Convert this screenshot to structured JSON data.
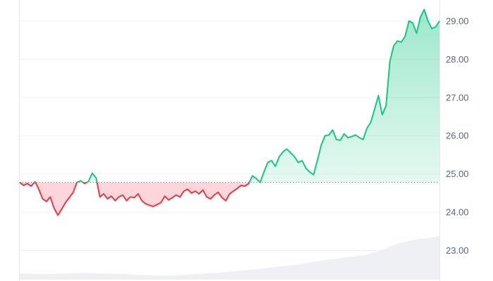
{
  "chart_data": {
    "type": "area",
    "baseline": 24.78,
    "ylim": [
      22.2,
      29.55
    ],
    "y_ticks": [
      {
        "value": 23,
        "label": "23.00"
      },
      {
        "value": 24,
        "label": "24.00"
      },
      {
        "value": 25,
        "label": "25.00"
      },
      {
        "value": 26,
        "label": "26.00"
      },
      {
        "value": 27,
        "label": "27.00"
      },
      {
        "value": 28,
        "label": "28.00"
      },
      {
        "value": 29,
        "label": "29.00"
      }
    ],
    "price": [
      24.78,
      24.7,
      24.75,
      24.68,
      24.8,
      24.6,
      24.35,
      24.28,
      24.4,
      24.1,
      23.92,
      24.08,
      24.25,
      24.38,
      24.52,
      24.78,
      24.82,
      24.75,
      24.8,
      25.02,
      24.9,
      24.4,
      24.48,
      24.35,
      24.42,
      24.3,
      24.4,
      24.45,
      24.3,
      24.4,
      24.38,
      24.48,
      24.3,
      24.22,
      24.18,
      24.15,
      24.2,
      24.25,
      24.42,
      24.32,
      24.38,
      24.45,
      24.4,
      24.55,
      24.6,
      24.5,
      24.55,
      24.48,
      24.58,
      24.4,
      24.35,
      24.45,
      24.52,
      24.38,
      24.3,
      24.48,
      24.55,
      24.62,
      24.7,
      24.68,
      24.75,
      24.95,
      24.88,
      24.78,
      25.05,
      25.3,
      25.35,
      25.2,
      25.45,
      25.58,
      25.65,
      25.55,
      25.45,
      25.3,
      25.35,
      25.15,
      25.05,
      24.98,
      25.35,
      25.75,
      26.0,
      26.02,
      26.15,
      25.9,
      25.88,
      26.05,
      25.95,
      25.98,
      26.02,
      25.95,
      25.9,
      26.2,
      26.35,
      26.7,
      27.05,
      26.55,
      26.78,
      27.95,
      28.35,
      28.48,
      28.45,
      28.6,
      29.0,
      28.95,
      28.68,
      29.1,
      29.3,
      29.0,
      28.8,
      28.85,
      29.0
    ],
    "volume": [
      0.3,
      0.3,
      0.28,
      0.28,
      0.3,
      0.32,
      0.35,
      0.32,
      0.3,
      0.3,
      0.28,
      0.25,
      0.22,
      0.2,
      0.2,
      0.22,
      0.25,
      0.28,
      0.32,
      0.35,
      0.4,
      0.45,
      0.5,
      0.55,
      0.62,
      0.68,
      0.72,
      0.8,
      0.9,
      0.98,
      1.05,
      1.12,
      1.18,
      1.25,
      1.4,
      1.6,
      1.8,
      1.95,
      2.05,
      2.1,
      2.2
    ]
  }
}
